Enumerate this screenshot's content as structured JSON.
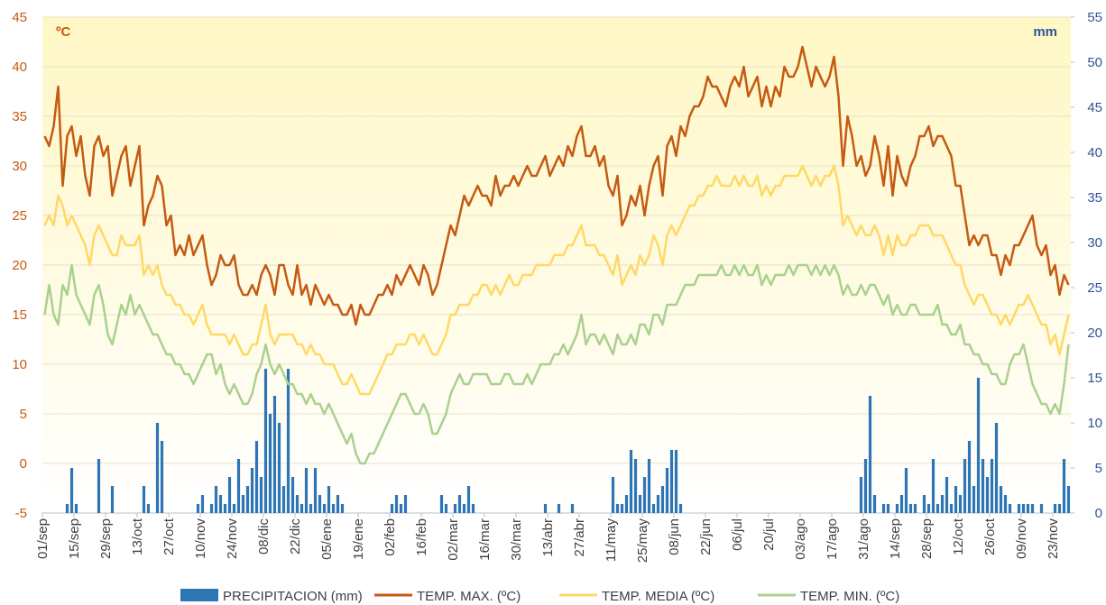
{
  "chart_data": {
    "type": "line",
    "y_label": "ºC",
    "y2_label": "mm",
    "ylim": [
      -5,
      45
    ],
    "yticks": [
      -5,
      0,
      5,
      10,
      15,
      20,
      25,
      30,
      35,
      40,
      45
    ],
    "y2lim": [
      0,
      55
    ],
    "y2ticks": [
      0,
      5,
      10,
      15,
      20,
      25,
      30,
      35,
      40,
      45,
      50,
      55
    ],
    "grid": true,
    "legend": "bottom",
    "categories": [
      "01/sep",
      null,
      null,
      null,
      null,
      null,
      null,
      "15/sep",
      null,
      null,
      null,
      null,
      null,
      null,
      "29/sep",
      null,
      null,
      null,
      null,
      null,
      null,
      "13/oct",
      null,
      null,
      null,
      null,
      null,
      null,
      "27/oct",
      null,
      null,
      null,
      null,
      null,
      null,
      "10/nov",
      null,
      null,
      null,
      null,
      null,
      null,
      "24/nov",
      null,
      null,
      null,
      null,
      null,
      null,
      "08/dic",
      null,
      null,
      null,
      null,
      null,
      null,
      "22/dic",
      null,
      null,
      null,
      null,
      null,
      null,
      "05/ene",
      null,
      null,
      null,
      null,
      null,
      null,
      "19/ene",
      null,
      null,
      null,
      null,
      null,
      null,
      "02/feb",
      null,
      null,
      null,
      null,
      null,
      null,
      "16/feb",
      null,
      null,
      null,
      null,
      null,
      null,
      "02/mar",
      null,
      null,
      null,
      null,
      null,
      null,
      "16/mar",
      null,
      null,
      null,
      null,
      null,
      null,
      "30/mar",
      null,
      null,
      null,
      null,
      null,
      null,
      "13/abr",
      null,
      null,
      null,
      null,
      null,
      null,
      "27/abr",
      null,
      null,
      null,
      null,
      null,
      null,
      "11/may",
      null,
      null,
      null,
      null,
      null,
      null,
      "25/may",
      null,
      null,
      null,
      null,
      null,
      null,
      "08/jun",
      null,
      null,
      null,
      null,
      null,
      null,
      "22/jun",
      null,
      null,
      null,
      null,
      null,
      null,
      "06/jul",
      null,
      null,
      null,
      null,
      null,
      null,
      "20/jul",
      null,
      null,
      null,
      null,
      null,
      null,
      "03/ago",
      null,
      null,
      null,
      null,
      null,
      null,
      "17/ago",
      null,
      null,
      null,
      null,
      null,
      null,
      "31/ago",
      null,
      null,
      null,
      null,
      null,
      null,
      "14/sep",
      null,
      null,
      null,
      null,
      null,
      null,
      "28/sep",
      null,
      null,
      null,
      null,
      null,
      null,
      "12/oct",
      null,
      null,
      null,
      null,
      null,
      null,
      "26/oct",
      null,
      null,
      null,
      null,
      null,
      null,
      "09/nov",
      null,
      null,
      null,
      null,
      null,
      null,
      "23/nov",
      null,
      null,
      null
    ],
    "series": [
      {
        "name": "PRECIPITACION (mm)",
        "type": "bar",
        "axis": "y2",
        "color": "#2e75b6",
        "values": [
          0,
          0,
          0,
          0,
          0,
          1,
          5,
          1,
          0,
          0,
          0,
          0,
          6,
          0,
          0,
          3,
          0,
          0,
          0,
          0,
          0,
          0,
          3,
          1,
          0,
          10,
          8,
          0,
          0,
          0,
          0,
          0,
          0,
          0,
          1,
          2,
          0,
          1,
          3,
          2,
          1,
          4,
          1,
          6,
          2,
          3,
          5,
          8,
          4,
          16,
          11,
          13,
          10,
          3,
          16,
          4,
          2,
          1,
          5,
          1,
          5,
          2,
          1,
          3,
          1,
          2,
          1,
          0,
          0,
          0,
          0,
          0,
          0,
          0,
          0,
          0,
          0,
          1,
          2,
          1,
          2,
          0,
          0,
          0,
          0,
          0,
          0,
          0,
          2,
          1,
          0,
          1,
          2,
          1,
          3,
          1,
          0,
          0,
          0,
          0,
          0,
          0,
          0,
          0,
          0,
          0,
          0,
          0,
          0,
          0,
          0,
          1,
          0,
          0,
          1,
          0,
          0,
          1,
          0,
          0,
          0,
          0,
          0,
          0,
          0,
          0,
          4,
          1,
          1,
          2,
          7,
          6,
          2,
          4,
          6,
          1,
          2,
          3,
          5,
          7,
          7,
          1,
          0,
          0,
          0,
          0,
          0,
          0,
          0,
          0,
          0,
          0,
          0,
          0,
          0,
          0,
          0,
          0,
          0,
          0,
          0,
          0,
          0,
          0,
          0,
          0,
          0,
          0,
          0,
          0,
          0,
          0,
          0,
          0,
          0,
          0,
          0,
          0,
          0,
          0,
          0,
          4,
          6,
          13,
          2,
          0,
          1,
          1,
          0,
          1,
          2,
          5,
          1,
          1,
          0,
          2,
          1,
          6,
          1,
          2,
          4,
          1,
          3,
          2,
          6,
          8,
          3,
          15,
          6,
          4,
          6,
          10,
          3,
          2,
          1,
          0,
          1,
          1,
          1,
          1,
          0,
          1,
          0,
          0,
          1,
          1,
          6,
          3
        ]
      },
      {
        "name": "TEMP. MAX. (ºC)",
        "type": "line",
        "color": "#c55a11",
        "values": [
          33,
          32,
          34,
          38,
          28,
          33,
          34,
          31,
          33,
          29,
          27,
          32,
          33,
          31,
          32,
          27,
          29,
          31,
          32,
          28,
          30,
          32,
          24,
          26,
          27,
          29,
          28,
          24,
          25,
          21,
          22,
          21,
          23,
          21,
          22,
          23,
          20,
          18,
          19,
          21,
          20,
          20,
          21,
          18,
          17,
          17,
          18,
          17,
          19,
          20,
          19,
          17,
          20,
          20,
          18,
          17,
          20,
          17,
          18,
          16,
          18,
          17,
          16,
          17,
          16,
          16,
          15,
          15,
          16,
          14,
          16,
          15,
          15,
          16,
          17,
          17,
          18,
          17,
          19,
          18,
          19,
          20,
          19,
          18,
          20,
          19,
          17,
          18,
          20,
          22,
          24,
          23,
          25,
          27,
          26,
          27,
          28,
          27,
          27,
          26,
          29,
          27,
          28,
          28,
          29,
          28,
          29,
          30,
          29,
          29,
          30,
          31,
          29,
          30,
          31,
          30,
          32,
          31,
          33,
          34,
          31,
          31,
          32,
          30,
          31,
          28,
          27,
          29,
          24,
          25,
          27,
          26,
          28,
          25,
          28,
          30,
          31,
          27,
          32,
          33,
          31,
          34,
          33,
          35,
          36,
          36,
          37,
          39,
          38,
          38,
          37,
          36,
          38,
          39,
          38,
          40,
          37,
          38,
          39,
          36,
          38,
          36,
          38,
          37,
          40,
          39,
          39,
          40,
          42,
          40,
          38,
          40,
          39,
          38,
          39,
          41,
          37,
          30,
          35,
          33,
          30,
          31,
          29,
          30,
          33,
          31,
          28,
          32,
          27,
          31,
          29,
          28,
          30,
          31,
          33,
          33,
          34,
          32,
          33,
          33,
          32,
          31,
          28,
          28,
          25,
          22,
          23,
          22,
          23,
          23,
          21,
          21,
          19,
          21,
          20,
          22,
          22,
          23,
          24,
          25,
          22,
          21,
          22,
          19,
          20,
          17,
          19,
          18
        ]
      },
      {
        "name": "TEMP. MEDIA (ºC)",
        "type": "line",
        "color": "#ffd966",
        "values": [
          24,
          25,
          24,
          27,
          26,
          24,
          25,
          24,
          23,
          22,
          20,
          23,
          24,
          23,
          22,
          21,
          21,
          23,
          22,
          22,
          22,
          23,
          19,
          20,
          19,
          20,
          18,
          17,
          17,
          16,
          16,
          15,
          15,
          14,
          15,
          16,
          14,
          13,
          13,
          13,
          13,
          12,
          13,
          12,
          11,
          11,
          12,
          12,
          14,
          16,
          13,
          12,
          13,
          13,
          13,
          13,
          12,
          12,
          11,
          12,
          11,
          11,
          10,
          10,
          10,
          9,
          8,
          8,
          9,
          8,
          7,
          7,
          7,
          8,
          9,
          10,
          11,
          11,
          12,
          12,
          12,
          13,
          13,
          12,
          13,
          12,
          11,
          11,
          12,
          13,
          15,
          15,
          16,
          16,
          16,
          17,
          17,
          18,
          18,
          17,
          18,
          17,
          18,
          19,
          18,
          18,
          19,
          19,
          19,
          20,
          20,
          20,
          20,
          21,
          21,
          21,
          22,
          22,
          23,
          24,
          22,
          22,
          22,
          21,
          21,
          20,
          19,
          21,
          18,
          19,
          20,
          19,
          21,
          20,
          21,
          23,
          22,
          20,
          23,
          24,
          23,
          24,
          25,
          26,
          26,
          27,
          27,
          28,
          28,
          29,
          28,
          28,
          28,
          29,
          28,
          29,
          28,
          28,
          29,
          27,
          28,
          27,
          28,
          28,
          29,
          29,
          29,
          29,
          30,
          29,
          28,
          29,
          28,
          29,
          29,
          30,
          28,
          24,
          25,
          24,
          23,
          24,
          23,
          23,
          24,
          23,
          21,
          23,
          21,
          23,
          22,
          22,
          23,
          23,
          24,
          24,
          24,
          23,
          23,
          23,
          22,
          21,
          20,
          20,
          18,
          17,
          16,
          17,
          17,
          16,
          15,
          15,
          14,
          15,
          14,
          15,
          16,
          16,
          17,
          16,
          15,
          14,
          14,
          12,
          13,
          11,
          13,
          15
        ]
      },
      {
        "name": "TEMP. MIN. (ºC)",
        "type": "line",
        "color": "#a9d18e",
        "values": [
          15,
          18,
          15,
          14,
          18,
          17,
          20,
          17,
          16,
          15,
          14,
          17,
          18,
          16,
          13,
          12,
          14,
          16,
          15,
          17,
          15,
          16,
          15,
          14,
          13,
          13,
          12,
          11,
          11,
          10,
          10,
          9,
          9,
          8,
          9,
          10,
          11,
          11,
          9,
          10,
          8,
          7,
          8,
          7,
          6,
          6,
          7,
          9,
          10,
          12,
          10,
          9,
          10,
          9,
          8,
          8,
          7,
          7,
          6,
          7,
          6,
          6,
          5,
          6,
          5,
          4,
          3,
          2,
          3,
          1,
          0,
          0,
          1,
          1,
          2,
          3,
          4,
          5,
          6,
          7,
          7,
          6,
          5,
          5,
          6,
          5,
          3,
          3,
          4,
          5,
          7,
          8,
          9,
          8,
          8,
          9,
          9,
          9,
          9,
          8,
          8,
          8,
          9,
          9,
          8,
          8,
          8,
          9,
          8,
          9,
          10,
          10,
          10,
          11,
          11,
          12,
          11,
          12,
          13,
          15,
          12,
          13,
          13,
          12,
          13,
          12,
          11,
          13,
          12,
          12,
          13,
          12,
          14,
          14,
          13,
          15,
          15,
          14,
          16,
          16,
          16,
          17,
          18,
          18,
          18,
          19,
          19,
          19,
          19,
          19,
          20,
          19,
          19,
          20,
          19,
          20,
          19,
          19,
          20,
          18,
          19,
          18,
          19,
          19,
          19,
          20,
          19,
          20,
          20,
          20,
          19,
          20,
          19,
          20,
          19,
          20,
          19,
          17,
          18,
          17,
          17,
          18,
          17,
          18,
          18,
          17,
          16,
          17,
          15,
          16,
          15,
          15,
          16,
          16,
          15,
          15,
          15,
          15,
          16,
          14,
          14,
          13,
          13,
          14,
          12,
          12,
          11,
          11,
          10,
          10,
          9,
          9,
          8,
          8,
          10,
          11,
          11,
          12,
          10,
          8,
          7,
          6,
          6,
          5,
          6,
          5,
          8,
          12
        ]
      }
    ]
  }
}
